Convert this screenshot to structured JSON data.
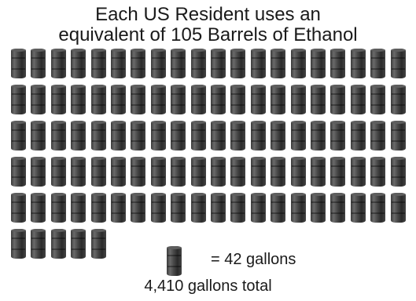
{
  "title": {
    "line1": "Each US Resident uses an",
    "line2": "equivalent of 105 Barrels of Ethanol"
  },
  "pictogram": {
    "barrel_count": 105,
    "barrels_per_row": 20,
    "barrel_icon": "barrel-icon"
  },
  "legend": {
    "icon": "barrel-icon",
    "text": "= 42 gallons"
  },
  "total": {
    "text": "4,410 gallons total"
  }
}
